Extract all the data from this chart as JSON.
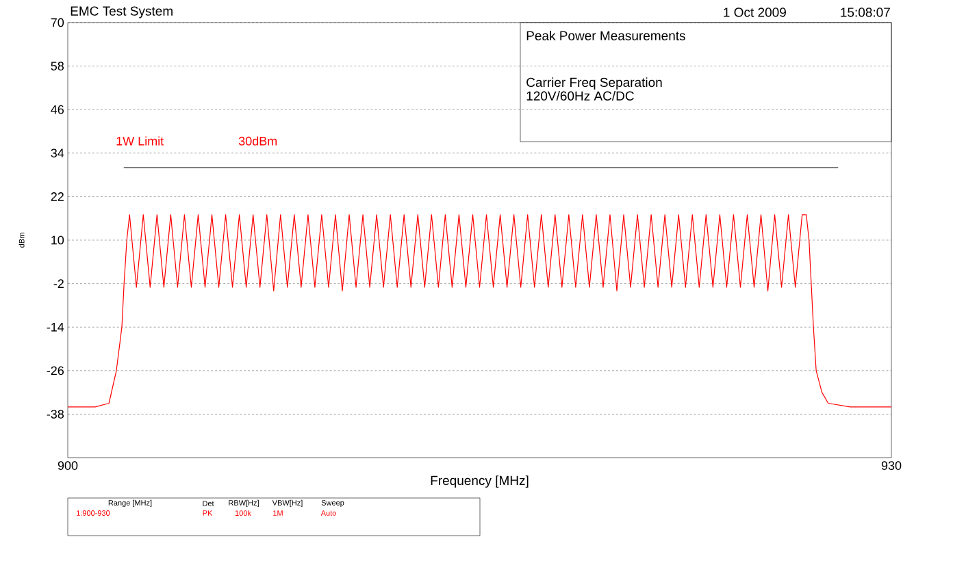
{
  "chart_data": {
    "type": "line",
    "title": "EMC Test System",
    "xlabel": "Frequency [MHz]",
    "ylabel": "dBm",
    "xlim": [
      900,
      930
    ],
    "xticks": [
      900,
      930
    ],
    "ylim": [
      -50,
      70
    ],
    "yticks": [
      70,
      58,
      46,
      34,
      22,
      10,
      -2,
      -14,
      -26,
      -38
    ],
    "grid": "y",
    "marker": "none",
    "line_style": "solid",
    "annotations": [
      "Peak Power Measurements",
      "Carrier Freq Separation",
      "120V/60Hz AC/DC",
      "1 Oct 2009",
      "15:08:07",
      "1W Limit",
      "30dBm",
      "Range [MHz]",
      "1:900-930",
      "Det",
      "PK",
      "RBW[Hz]",
      "100k",
      "VBW[Hz]",
      "1M",
      "Sweep",
      "Auto"
    ],
    "series": [
      {
        "color": "#ff0000",
        "x": [
          900,
          900.5,
          901,
          901.5,
          901.65,
          901.77,
          901.97,
          902.05,
          902.15,
          902.25,
          902.5,
          902.75,
          903,
          903.25,
          903.5,
          903.75,
          904,
          904.25,
          904.5,
          904.75,
          905,
          905.25,
          905.5,
          905.75,
          906,
          906.25,
          906.5,
          906.75,
          907,
          907.25,
          907.5,
          907.75,
          908,
          908.25,
          908.5,
          908.75,
          909,
          909.25,
          909.5,
          909.75,
          910,
          910.25,
          910.5,
          910.75,
          911,
          911.25,
          911.5,
          911.75,
          912,
          912.25,
          912.5,
          912.75,
          913,
          913.25,
          913.5,
          913.75,
          914,
          914.25,
          914.5,
          914.75,
          915,
          915.25,
          915.5,
          915.75,
          916,
          916.25,
          916.5,
          916.75,
          917,
          917.25,
          917.5,
          917.75,
          918,
          918.25,
          918.5,
          918.75,
          919,
          919.25,
          919.5,
          919.75,
          920,
          920.25,
          920.5,
          920.75,
          921,
          921.25,
          921.5,
          921.75,
          922,
          922.25,
          922.5,
          922.75,
          923,
          923.25,
          923.5,
          923.75,
          924,
          924.25,
          924.5,
          924.75,
          925,
          925.25,
          925.5,
          925.75,
          926,
          926.25,
          926.5,
          926.75,
          926.9,
          927,
          927.08,
          927.16,
          927.26,
          927.47,
          927.7,
          928.5,
          929.3,
          930
        ],
        "values": [
          -36,
          -36,
          -36,
          -35,
          -30,
          -26,
          -14,
          -2,
          10,
          17,
          -3,
          17,
          -3,
          17,
          -3,
          17,
          -3,
          17,
          -3,
          17,
          -3,
          17,
          -3,
          17,
          -3,
          17,
          -3,
          17,
          -3,
          17,
          -4,
          17,
          -3,
          17,
          -3,
          17,
          -3,
          17,
          -3,
          17,
          -4,
          17,
          -3,
          17,
          -3,
          17,
          -3,
          17,
          -3,
          17,
          -3,
          17,
          -3,
          17,
          -3,
          17,
          -3,
          17,
          -3,
          17,
          -3,
          17,
          -3,
          17,
          -3,
          17,
          -3,
          17,
          -3,
          17,
          -3,
          17,
          -3,
          17,
          -3,
          17,
          -3,
          17,
          -3,
          17,
          -4,
          17,
          -3,
          17,
          -3,
          17,
          -3,
          17,
          -3,
          17,
          -3,
          17,
          -3,
          17,
          -3,
          17,
          -3,
          17,
          -3,
          17,
          -3,
          17,
          -4,
          17,
          -3,
          17,
          -3,
          17,
          17,
          10,
          -2,
          -14,
          -26,
          -32,
          -35,
          -36,
          -36,
          -36
        ]
      },
      {
        "color": "#000000",
        "x": [
          902.05,
          928.05
        ],
        "values": [
          30,
          30
        ]
      }
    ]
  }
}
